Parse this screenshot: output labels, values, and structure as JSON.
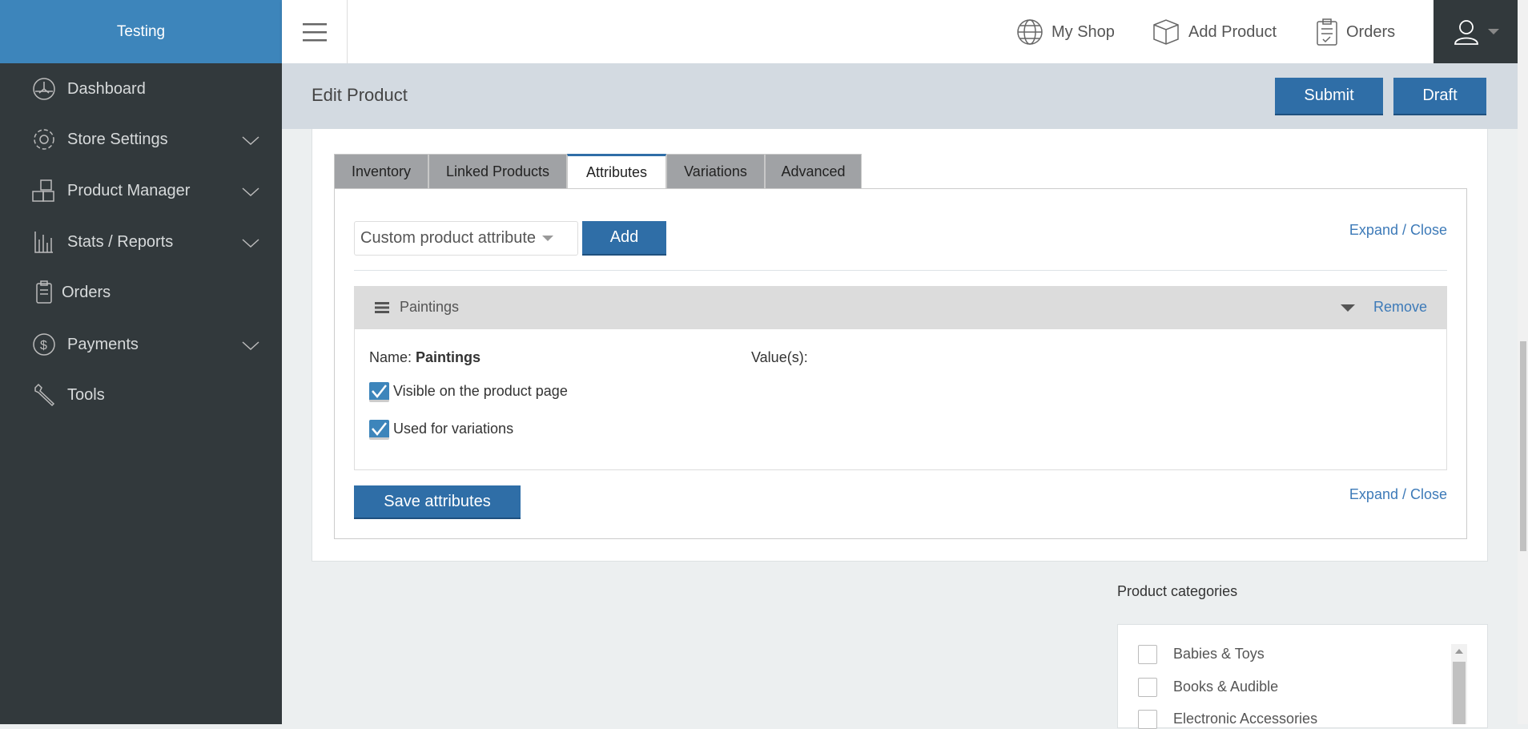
{
  "brand": "Testing",
  "topnav": {
    "my_shop": "My Shop",
    "add_product": "Add Product",
    "orders": "Orders"
  },
  "sidebar": {
    "items": [
      {
        "label": "Dashboard",
        "icon": "dashboard-icon"
      },
      {
        "label": "Store Settings",
        "icon": "gear-icon",
        "expandable": true
      },
      {
        "label": "Product Manager",
        "icon": "boxes-icon",
        "expandable": true
      },
      {
        "label": "Stats / Reports",
        "icon": "bar-chart-icon",
        "expandable": true
      },
      {
        "label": "Orders",
        "icon": "clipboard-icon"
      },
      {
        "label": "Payments",
        "icon": "dollar-icon",
        "expandable": true
      },
      {
        "label": "Tools",
        "icon": "wrench-icon"
      }
    ]
  },
  "page": {
    "title": "Edit Product",
    "submit": "Submit",
    "draft": "Draft"
  },
  "tabs": [
    "Inventory",
    "Linked Products",
    "Attributes",
    "Variations",
    "Advanced"
  ],
  "active_tab": "Attributes",
  "attributes": {
    "select_value": "Custom product attribute",
    "add": "Add",
    "expand_close": "Expand / Close",
    "item": {
      "title": "Paintings",
      "remove": "Remove",
      "name_label": "Name:",
      "name_value": "Paintings",
      "values_label": "Value(s):",
      "visible_label": "Visible on the product page",
      "visible_checked": true,
      "variations_label": "Used for variations",
      "variations_checked": true
    },
    "save": "Save attributes"
  },
  "categories": {
    "label": "Product categories",
    "items": [
      "Babies & Toys",
      "Books & Audible",
      "Electronic Accessories"
    ]
  },
  "colors": {
    "brand": "#3d85bb",
    "sidebar": "#32393c",
    "button": "#2f6ea7"
  }
}
